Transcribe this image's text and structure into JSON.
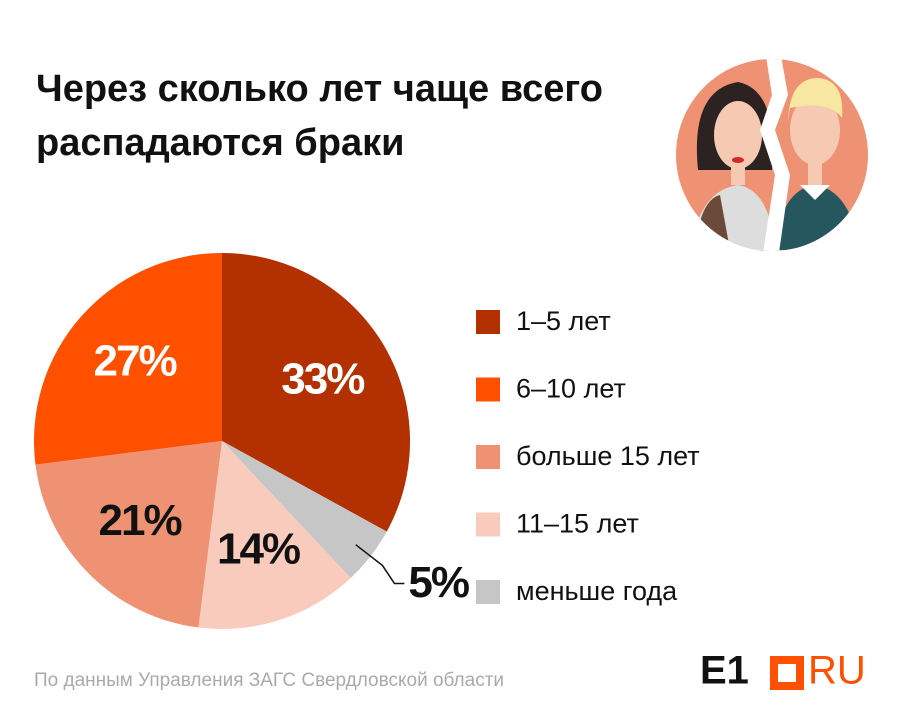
{
  "chart_data": {
    "type": "pie",
    "title": "Через сколько лет чаще всего распадаются браки",
    "categories": [
      "1–5 лет",
      "меньше года",
      "11–15 лет",
      "больше 15 лет",
      "6–10 лет"
    ],
    "values": [
      33,
      5,
      14,
      21,
      27
    ],
    "value_labels": [
      "33%",
      "5%",
      "14%",
      "21%",
      "27%"
    ],
    "colors": [
      "#b33000",
      "#c6c6c6",
      "#f9cbbd",
      "#ef9274",
      "#ff5000"
    ],
    "source": "По данным Управления ЗАГС Свердловской области",
    "logo": {
      "brand": "E1",
      "domain": "RU"
    }
  }
}
